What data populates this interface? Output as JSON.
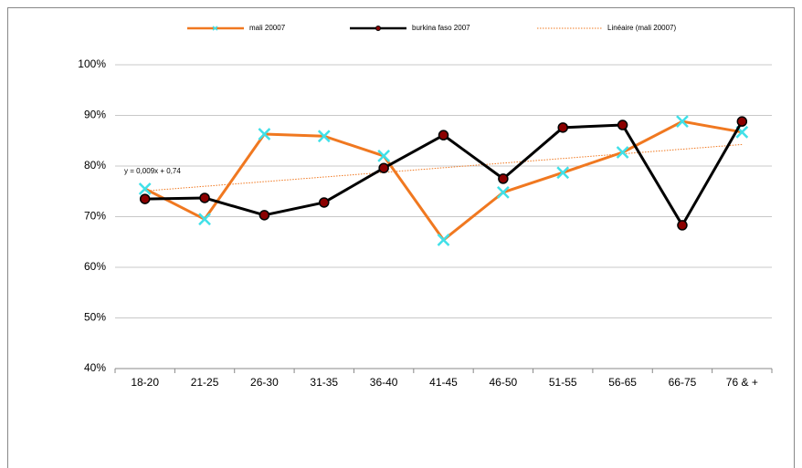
{
  "chart_data": {
    "type": "line",
    "categories": [
      "18-20",
      "21-25",
      "26-30",
      "31-35",
      "36-40",
      "41-45",
      "46-50",
      "51-55",
      "56-65",
      "66-75",
      "76 & +"
    ],
    "series": [
      {
        "name": "mali 20007",
        "color": "#f07820",
        "marker": "x",
        "marker_color": "#40e0e8",
        "values": [
          75.5,
          69.5,
          86.3,
          85.9,
          82.0,
          65.4,
          74.8,
          78.7,
          82.7,
          88.8,
          86.7
        ]
      },
      {
        "name": "burkina faso 2007",
        "color": "#000000",
        "marker": "circle",
        "marker_color": "#8b0000",
        "values": [
          73.5,
          73.7,
          70.3,
          72.8,
          79.6,
          86.1,
          77.5,
          87.6,
          88.1,
          68.3,
          88.8
        ]
      }
    ],
    "trendline": {
      "name": "Linéaire (mali 20007)",
      "of_series": 0,
      "color": "#f07820",
      "equation": "y = 0,009x + 0,74"
    },
    "ylim": [
      40,
      100
    ],
    "yticks": [
      {
        "value": 40,
        "label": "40%"
      },
      {
        "value": 50,
        "label": "50%"
      },
      {
        "value": 60,
        "label": "60%"
      },
      {
        "value": 70,
        "label": "70%"
      },
      {
        "value": 80,
        "label": "80%"
      },
      {
        "value": 90,
        "label": "90%"
      },
      {
        "value": 100,
        "label": "100%"
      }
    ],
    "grid": true,
    "legend": "top"
  }
}
